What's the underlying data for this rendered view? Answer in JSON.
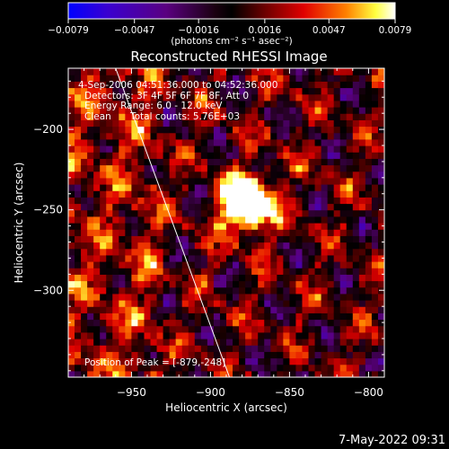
{
  "chart_data": {
    "type": "heatmap",
    "title": "Reconstructed RHESSI Image",
    "xlabel": "Heliocentric X (arcsec)",
    "ylabel": "Heliocentric Y (arcsec)",
    "xlim": [
      -990,
      -790
    ],
    "ylim": [
      -354,
      -162
    ],
    "x_ticks": [
      -950,
      -900,
      -850,
      -800
    ],
    "x_tick_labels": [
      "−950",
      "−900",
      "−850",
      "−800"
    ],
    "y_ticks": [
      -200,
      -250,
      -300
    ],
    "y_tick_labels": [
      "−200",
      "−250",
      "−300"
    ],
    "colorbar": {
      "min": -0.0079,
      "max": 0.0079,
      "ticks": [
        -0.0079,
        -0.0047,
        -0.0016,
        0.0016,
        0.0047,
        0.0079
      ],
      "tick_labels": [
        "−0.0079",
        "−0.0047",
        "−0.0016",
        "0.0016",
        "0.0047",
        "0.0079"
      ],
      "unit_label": "(photons cm⁻² s⁻¹ asec⁻²)",
      "colors": [
        "#0000ff",
        "#5a00a0",
        "#1a001a",
        "#000000",
        "#7a0000",
        "#e00000",
        "#ff7a00",
        "#ffff40",
        "#ffffff"
      ]
    },
    "annotations": {
      "time_range": "4-Sep-2006 04:51:36.000 to 04:52:36.000",
      "detectors": "Detectors: 3F 4F 5F 6F 7F 8F, Att 0",
      "energy_range": "Energy Range: 6.0 - 12.0 keV",
      "method": "Clean",
      "total_counts": "Total counts: 5.76E+03",
      "peak_label": "Position of Peak = [-879,-248]"
    },
    "peak": {
      "x": -879,
      "y": -248
    },
    "limb_line": {
      "x1": -960,
      "y1": -162,
      "x2": -888,
      "y2": -354
    },
    "grid": false
  },
  "footer": {
    "timestamp": "7-May-2022 09:31"
  }
}
